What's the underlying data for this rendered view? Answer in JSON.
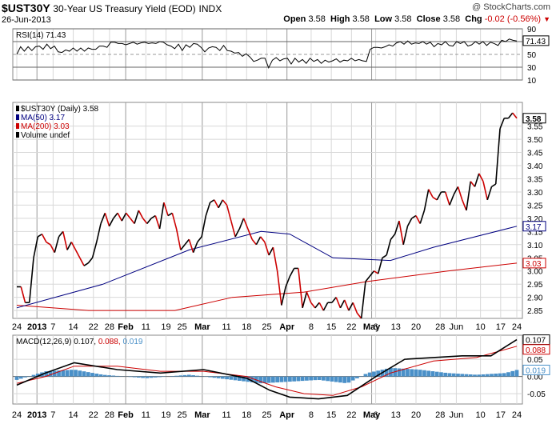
{
  "header": {
    "symbol": "$UST30Y",
    "description": "30-Year US Treasury Yield (EOD)",
    "exchange": "INDX",
    "date": "26-Jun-2013",
    "credit": "@ StockCharts.com",
    "open_label": "Open",
    "open": "3.58",
    "high_label": "High",
    "high": "3.58",
    "low_label": "Low",
    "low": "3.58",
    "close_label": "Close",
    "close": "3.58",
    "chg_label": "Chg",
    "chg": "-0.02 (-0.56%)"
  },
  "colors": {
    "price_up": "#000000",
    "price_down": "#cc0000",
    "ma50": "#000080",
    "ma200": "#cc0000",
    "macd_line": "#000000",
    "signal_line": "#cc0000",
    "histogram": "#4a90c8",
    "grid": "#d8d8d8",
    "frame": "#888888"
  },
  "chart_data": [
    {
      "type": "line",
      "panel": "RSI",
      "legend": "RSI(14) 71.43",
      "last_value_label": "71.43",
      "ylim": [
        10,
        90
      ],
      "yticks": [
        90,
        70,
        50,
        30,
        10
      ],
      "reference_lines": [
        70,
        50,
        30
      ],
      "values": [
        50,
        62,
        55,
        62,
        56,
        62,
        63,
        58,
        66,
        59,
        63,
        54,
        53,
        57,
        55,
        60,
        55,
        60,
        55,
        60,
        58,
        58,
        63,
        63,
        61,
        69,
        69,
        67,
        67,
        65,
        67,
        69,
        66,
        68,
        69,
        67,
        68,
        67,
        70,
        69,
        65,
        63,
        59,
        66,
        56,
        65,
        61,
        67,
        66,
        61,
        54,
        60,
        62,
        61,
        56,
        64,
        56,
        55,
        52,
        53,
        47,
        51,
        46,
        39,
        41,
        44,
        44,
        29,
        41,
        45,
        40,
        43,
        44,
        35,
        44,
        38,
        42,
        36,
        44,
        39,
        42,
        36,
        41,
        38,
        40,
        43,
        38,
        41,
        40,
        44,
        40,
        42,
        40,
        39,
        58,
        61,
        61,
        60,
        62,
        65,
        63,
        68,
        70,
        66,
        71,
        66,
        68,
        67,
        70,
        66,
        69,
        62,
        67,
        65,
        70,
        64,
        63,
        70,
        67,
        70,
        63,
        65,
        70,
        66,
        70,
        64,
        69,
        67,
        64,
        72,
        70,
        74,
        72,
        71
      ]
    },
    {
      "type": "line",
      "panel": "Price",
      "series": [
        {
          "name": "$UST30Y (Daily) 3.58",
          "values": [
            2.94,
            2.94,
            2.88,
            2.88,
            3.05,
            3.13,
            3.14,
            3.11,
            3.1,
            3.07,
            3.13,
            3.15,
            3.08,
            3.11,
            3.08,
            3.05,
            3.02,
            3.03,
            3.05,
            3.11,
            3.18,
            3.22,
            3.17,
            3.2,
            3.22,
            3.19,
            3.22,
            3.2,
            3.18,
            3.23,
            3.2,
            3.18,
            3.2,
            3.21,
            3.16,
            3.26,
            3.21,
            3.22,
            3.16,
            3.08,
            3.1,
            3.12,
            3.07,
            3.11,
            3.13,
            3.21,
            3.26,
            3.27,
            3.24,
            3.27,
            3.25,
            3.19,
            3.13,
            3.16,
            3.2,
            3.16,
            3.12,
            3.1,
            3.13,
            3.11,
            3.06,
            3.09,
            3.0,
            2.87,
            2.94,
            2.98,
            3.01,
            3.01,
            2.86,
            2.92,
            2.88,
            2.86,
            2.88,
            2.85,
            2.88,
            2.88,
            2.9,
            2.86,
            2.89,
            2.85,
            2.88,
            2.84,
            2.82,
            2.96,
            2.98,
            3.0,
            2.99,
            3.05,
            3.06,
            3.12,
            3.14,
            3.19,
            3.1,
            3.17,
            3.2,
            3.21,
            3.18,
            3.23,
            3.31,
            3.28,
            3.27,
            3.3,
            3.3,
            3.25,
            3.29,
            3.32,
            3.27,
            3.23,
            3.34,
            3.32,
            3.37,
            3.34,
            3.27,
            3.32,
            3.33,
            3.54,
            3.58,
            3.58,
            3.6,
            3.58
          ]
        },
        {
          "name": "MA(50) 3.17",
          "last_value_label": "3.17"
        },
        {
          "name": "MA(200) 3.03",
          "last_value_label": "3.03"
        },
        {
          "name": "Volume undef"
        }
      ],
      "ma50_points": [
        [
          0,
          2.86
        ],
        [
          30,
          2.95
        ],
        [
          60,
          3.08
        ],
        [
          85,
          3.15
        ],
        [
          95,
          3.14
        ],
        [
          110,
          3.05
        ],
        [
          130,
          3.04
        ],
        [
          145,
          3.09
        ],
        [
          174,
          3.17
        ]
      ],
      "ma200_points": [
        [
          0,
          2.87
        ],
        [
          25,
          2.85
        ],
        [
          55,
          2.85
        ],
        [
          75,
          2.9
        ],
        [
          100,
          2.92
        ],
        [
          122,
          2.96
        ],
        [
          150,
          3.0
        ],
        [
          174,
          3.03
        ]
      ],
      "close_label": "3.58",
      "ylim": [
        2.82,
        3.64
      ],
      "yticks": [
        "2.85",
        "2.90",
        "2.95",
        "3.00",
        "3.05",
        "3.10",
        "3.15",
        "3.20",
        "3.25",
        "3.30",
        "3.35",
        "3.40",
        "3.45",
        "3.50",
        "3.55"
      ]
    },
    {
      "type": "bar+line",
      "panel": "MACD",
      "legend_prefix": "MACD(12,26,9)",
      "macd_value": "0.107",
      "signal_value": "0.088",
      "hist_value": "0.019",
      "ylim": [
        -0.08,
        0.12
      ],
      "yticks": [
        "0.05",
        "0.00",
        "-0.05"
      ],
      "macd_points": [
        [
          0,
          -0.025
        ],
        [
          10,
          0.01
        ],
        [
          20,
          0.04
        ],
        [
          35,
          0.02
        ],
        [
          50,
          0.01
        ],
        [
          65,
          0.02
        ],
        [
          80,
          -0.005
        ],
        [
          88,
          -0.04
        ],
        [
          95,
          -0.06
        ],
        [
          105,
          -0.065
        ],
        [
          115,
          -0.055
        ],
        [
          125,
          0.0
        ],
        [
          135,
          0.05
        ],
        [
          145,
          0.055
        ],
        [
          155,
          0.06
        ],
        [
          165,
          0.06
        ],
        [
          174,
          0.107
        ]
      ],
      "signal_points": [
        [
          0,
          -0.02
        ],
        [
          10,
          0.0
        ],
        [
          20,
          0.03
        ],
        [
          35,
          0.03
        ],
        [
          50,
          0.015
        ],
        [
          65,
          0.015
        ],
        [
          80,
          0.0
        ],
        [
          90,
          -0.03
        ],
        [
          100,
          -0.05
        ],
        [
          110,
          -0.055
        ],
        [
          120,
          -0.03
        ],
        [
          130,
          0.01
        ],
        [
          145,
          0.045
        ],
        [
          160,
          0.055
        ],
        [
          174,
          0.088
        ]
      ],
      "histogram_points": [
        [
          0,
          -0.01
        ],
        [
          10,
          0.015
        ],
        [
          20,
          0.02
        ],
        [
          30,
          0.005
        ],
        [
          45,
          -0.005
        ],
        [
          60,
          0.005
        ],
        [
          75,
          -0.01
        ],
        [
          85,
          -0.02
        ],
        [
          95,
          -0.015
        ],
        [
          105,
          -0.01
        ],
        [
          115,
          -0.02
        ],
        [
          122,
          0.01
        ],
        [
          130,
          0.025
        ],
        [
          140,
          0.02
        ],
        [
          150,
          0.01
        ],
        [
          160,
          0.005
        ],
        [
          170,
          0.01
        ],
        [
          174,
          0.019
        ]
      ]
    }
  ],
  "x_axis": {
    "bars": 120,
    "labels": [
      "24",
      "2013",
      "7",
      "14",
      "22",
      "28",
      "Feb",
      "11",
      "19",
      "25",
      "Mar",
      "11",
      "18",
      "25",
      "Apr",
      "8",
      "15",
      "22",
      "May",
      "6",
      "13",
      "20",
      "28",
      "Jun",
      "10",
      "17",
      "24"
    ],
    "label_positions": [
      0,
      5,
      9,
      14,
      19,
      23,
      27,
      32,
      37,
      41,
      46,
      52,
      57,
      62,
      67,
      73,
      78,
      83,
      88,
      89,
      94,
      99,
      105,
      109,
      115,
      120,
      124
    ],
    "month_labels": [
      "2013",
      "Feb",
      "Mar",
      "Apr",
      "May"
    ]
  }
}
